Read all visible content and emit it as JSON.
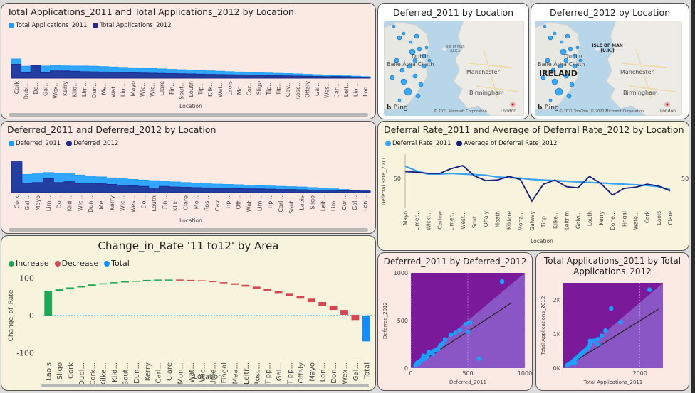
{
  "tiles": {
    "t1": {
      "title": "Total Applications_2011 and Total Applications_2012 by Location",
      "xlabel": "Location",
      "legend": [
        {
          "name": "Total Applications_2011",
          "color": "#1aa0ff"
        },
        {
          "name": "Total Applications_2012",
          "color": "#1f2b8f"
        }
      ]
    },
    "t2": {
      "title": "Deferred_2011 by Location"
    },
    "t3": {
      "title": "Deferred_2012 by Location"
    },
    "t4": {
      "title": "Deferred_2011 and Deferred_2012 by Location",
      "xlabel": "Location",
      "legend": [
        {
          "name": "Deferred_2011",
          "color": "#1aa0ff"
        },
        {
          "name": "Deferred_2012",
          "color": "#1f2b8f"
        }
      ]
    },
    "t5": {
      "title": "Deferral Rate_2011 and Average of Deferral Rate_2012 by Location",
      "xlabel": "Location",
      "ylabel": "Deferral Rate_2011",
      "legend": [
        {
          "name": "Deferral Rate_2011",
          "color": "#3aa3f2"
        },
        {
          "name": "Average of Deferral Rate_2012",
          "color": "#14207a"
        }
      ]
    },
    "t6": {
      "title": "Change_in_Rate '11 to12' by Area",
      "xlabel": "Location",
      "ylabel": "Change_of_Rate",
      "legend": [
        {
          "name": "Increase",
          "color": "#1aaa55"
        },
        {
          "name": "Decrease",
          "color": "#d64550"
        },
        {
          "name": "Total",
          "color": "#118dff"
        }
      ]
    },
    "t7": {
      "title": "Deferred_2011 by Deferred_2012",
      "xlabel": "Deferred_2011",
      "ylabel": "Deferred_2012"
    },
    "t8": {
      "title": "Total Applications_2011 by Total Applications_2012",
      "xlabel": "Total Applications_2011",
      "ylabel": "Total Applications_2012"
    }
  },
  "maps": {
    "labels": {
      "isle_of_man": "Isle of Man (U.K.)",
      "isle_of_man_caps": "ISLE OF MAN (U.K.)",
      "dublin": "Dublin",
      "baile": "Baile Átha Cliath",
      "manchester": "Manchester",
      "birmingham": "Birmingham",
      "ireland": "IRELAND",
      "london": "London",
      "bing": "Bing"
    },
    "copyright_2011": "© 2021 Microsoft Corporation",
    "copyright_2012": "© 2021 TomTom, © 2021 Microsoft Corporation"
  },
  "chart_data": [
    {
      "type": "area",
      "id": "t1",
      "categories": [
        "Cork",
        "Dubl...",
        "Do...",
        "Gal...",
        "Wex...",
        "Kerry",
        "Kild...",
        "Lim...",
        "Dun...",
        "Me...",
        "Wat...",
        "Lim...",
        "Mayo",
        "Wic...",
        "Wic...",
        "Clare",
        "Fin...",
        "Sout...",
        "Louth",
        "Tip...",
        "Kilk...",
        "Wat...",
        "Laois",
        "Mo...",
        "Cor...",
        "Sligo",
        "Tip...",
        "Tip...",
        "Cav...",
        "Rosc...",
        "Offaly",
        "Gal...",
        "Wes...",
        "Carl...",
        "Leit...",
        "Lim...",
        "Lon..."
      ],
      "series": [
        {
          "name": "Total Applications_2011",
          "values": [
            100,
            62,
            67,
            63,
            68,
            64,
            63,
            63,
            62,
            60,
            58,
            56,
            54,
            52,
            50,
            48,
            46,
            44,
            42,
            40,
            38,
            36,
            34,
            32,
            30,
            28,
            27,
            25,
            24,
            22,
            20,
            18,
            16,
            14,
            12,
            10,
            8
          ]
        },
        {
          "name": "Total Applications_2012",
          "values": [
            72,
            28,
            66,
            28,
            38,
            38,
            36,
            34,
            33,
            32,
            30,
            29,
            28,
            27,
            26,
            25,
            24,
            23,
            22,
            21,
            20,
            19,
            18,
            17,
            16,
            15,
            14,
            13,
            12,
            11,
            10,
            9,
            8,
            9,
            8,
            6,
            5
          ]
        }
      ]
    },
    {
      "type": "area",
      "id": "t4",
      "categories": [
        "Cork",
        "Gal...",
        "Mayo",
        "Lim...",
        "Do...",
        "Kild...",
        "Wic...",
        "Dun...",
        "Me...",
        "Kerry",
        "Wic...",
        "Wes...",
        "Do...",
        "Louth",
        "Fin...",
        "Kilk...",
        "Clare",
        "Mo...",
        "Ros...",
        "Cav...",
        "Tip...",
        "Off...",
        "Wat...",
        "Lim...",
        "Tip...",
        "Carl...",
        "Sout...",
        "Laois",
        "Sligo",
        "Leit...",
        "Lim...",
        "Cor...",
        "Gal...",
        "Lon..."
      ],
      "series": [
        {
          "name": "Deferred_2011",
          "values": [
            95,
            58,
            60,
            64,
            62,
            60,
            56,
            53,
            50,
            47,
            44,
            42,
            40,
            38,
            36,
            34,
            32,
            30,
            28,
            27,
            26,
            25,
            24,
            22,
            21,
            20,
            19,
            18,
            16,
            14,
            12,
            10,
            8,
            6
          ]
        },
        {
          "name": "Deferred_2012",
          "values": [
            100,
            30,
            32,
            45,
            32,
            35,
            30,
            30,
            28,
            26,
            24,
            22,
            20,
            12,
            20,
            18,
            17,
            16,
            15,
            14,
            14,
            13,
            12,
            12,
            11,
            10,
            10,
            9,
            8,
            8,
            7,
            6,
            6,
            5
          ]
        }
      ]
    },
    {
      "type": "line",
      "id": "t5",
      "categories": [
        "Mayo",
        "Limer...",
        "Wickl...",
        "Carlow",
        "Limer...",
        "West...",
        "Sout...",
        "Offaly",
        "Meath",
        "Kildare",
        "Mona...",
        "Galway",
        "Tipp...",
        "Kilke...",
        "Leitrim",
        "Galw...",
        "Louth",
        "Kerry",
        "Done...",
        "Fingal",
        "Wate...",
        "Cork",
        "Laois",
        "Clare"
      ],
      "series": [
        {
          "name": "Deferral Rate_2011",
          "values": [
            70,
            62,
            57,
            57,
            58,
            57,
            56,
            55,
            52,
            51,
            50,
            48,
            47,
            46,
            45,
            44,
            43,
            42,
            41,
            40,
            39,
            38,
            36,
            31
          ]
        },
        {
          "name": "Average of Deferral Rate_2012",
          "values": [
            61,
            60,
            58,
            58,
            66,
            71,
            54,
            46,
            47,
            53,
            48,
            12,
            40,
            47,
            36,
            34,
            53,
            41,
            22,
            33,
            35,
            40,
            37,
            29
          ]
        }
      ],
      "yticks": [
        50
      ],
      "ylim": [
        0,
        90
      ]
    },
    {
      "type": "waterfall",
      "id": "t6",
      "categories": [
        "Laois",
        "Sligo",
        "Cork",
        "Dubl...",
        "Cork...",
        "Kilke...",
        "Kild...",
        "Sout...",
        "Dun...",
        "Kerry",
        "Carl...",
        "Clare",
        "Mon...",
        "Wat...",
        "Wic...",
        "Lime...",
        "Fingal",
        "Mea...",
        "Leitr...",
        "Rosc...",
        "Tipp...",
        "Gal...",
        "Tipp...",
        "Offaly",
        "Mayo",
        "Lon...",
        "Don...",
        "Wex...",
        "Gal...",
        "Total"
      ],
      "values": [
        66,
        4,
        5,
        4,
        4,
        3,
        3,
        2,
        2,
        2,
        1,
        0,
        -1,
        -1,
        -2,
        -3,
        -3,
        -4,
        -5,
        -5,
        -6,
        -6,
        -7,
        -8,
        -9,
        -10,
        -11,
        -13,
        -14,
        -69
      ],
      "yticks": [
        100,
        0,
        -100
      ],
      "ylim": [
        -110,
        110
      ]
    },
    {
      "type": "scatter",
      "id": "t7",
      "x": [
        800,
        500,
        520,
        480,
        430,
        390,
        350,
        300,
        280,
        260,
        240,
        220,
        200,
        190,
        170,
        160,
        150,
        140,
        130,
        120,
        110,
        100,
        90,
        80,
        70,
        60,
        50,
        40,
        600
      ],
      "y": [
        910,
        380,
        480,
        460,
        400,
        370,
        350,
        300,
        260,
        240,
        200,
        190,
        180,
        150,
        160,
        170,
        140,
        120,
        110,
        100,
        130,
        90,
        80,
        70,
        50,
        60,
        40,
        30,
        100
      ],
      "xticks": [
        0,
        500,
        1000
      ],
      "yticks": [
        0,
        500,
        1000
      ],
      "xlim": [
        0,
        1000
      ],
      "ylim": [
        0,
        1000
      ]
    },
    {
      "type": "scatter",
      "id": "t8",
      "x": [
        2250,
        1250,
        1500,
        1100,
        1000,
        900,
        800,
        700,
        650,
        600,
        550,
        500,
        450,
        400,
        350,
        300,
        250,
        200,
        150,
        100,
        900,
        700,
        300
      ],
      "y": [
        2300,
        1750,
        1350,
        1100,
        950,
        850,
        800,
        700,
        600,
        550,
        500,
        450,
        400,
        350,
        300,
        250,
        200,
        150,
        120,
        80,
        700,
        800,
        150
      ],
      "xticks": [
        2000
      ],
      "yticks": [
        0,
        1000,
        2000
      ],
      "yticklabels": [
        "0K",
        "1K",
        "2K"
      ],
      "xlim": [
        0,
        2600
      ],
      "ylim": [
        0,
        2500
      ]
    }
  ]
}
